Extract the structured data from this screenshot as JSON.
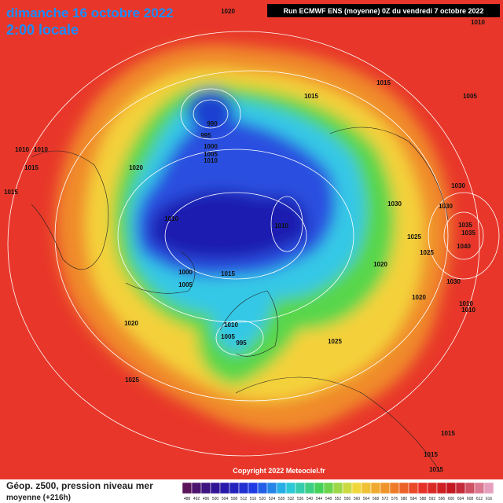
{
  "header": {
    "date": "dimanche 16 octobre 2022",
    "time": "2:00 locale",
    "run": "Run ECMWF ENS (moyenne) 0Z du vendredi 7 octobre 2022"
  },
  "map": {
    "isobar_labels": [
      "1020",
      "1010",
      "1015",
      "1005",
      "1015",
      "990",
      "995",
      "1000",
      "1005",
      "1010",
      "1010",
      "1010",
      "1015",
      "1020",
      "1015",
      "1030",
      "1030",
      "1030",
      "1010",
      "1010",
      "1025",
      "1035",
      "1035",
      "1040",
      "1025",
      "1020",
      "1000",
      "1005",
      "1015",
      "1030",
      "1020",
      "1010",
      "1010",
      "1020",
      "1010",
      "1005",
      "995",
      "1025",
      "1025",
      "1015",
      "1015",
      "1015"
    ],
    "copyright": "Copyright 2022 Meteociel.fr"
  },
  "footer": {
    "title": "Géop. z500, pression niveau mer",
    "subtitle": "moyenne  (+216h)",
    "colorbar": [
      488,
      492,
      496,
      500,
      504,
      508,
      512,
      516,
      520,
      524,
      528,
      532,
      536,
      540,
      544,
      548,
      552,
      556,
      560,
      564,
      568,
      572,
      576,
      580,
      584,
      588,
      592,
      596,
      600,
      604,
      608,
      612,
      616
    ]
  }
}
